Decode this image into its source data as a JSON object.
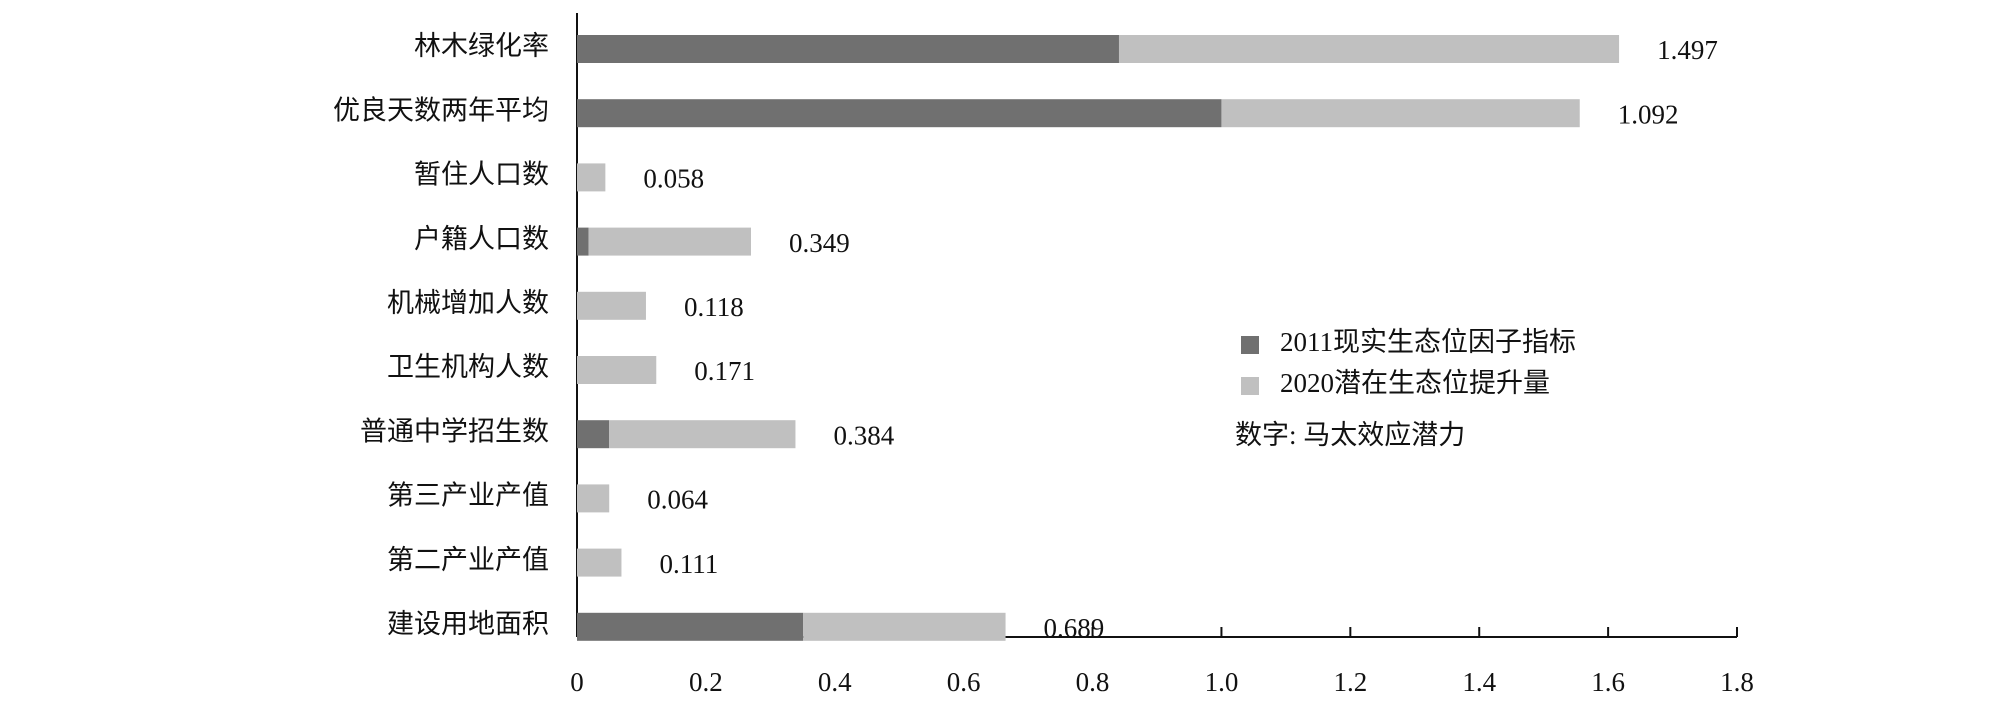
{
  "chart_data": {
    "type": "bar",
    "orientation": "horizontal",
    "stacked": true,
    "categories": [
      "林木绿化率",
      "优良天数两年平均",
      "暂住人口数",
      "户籍人口数",
      "机械增加人数",
      "卫生机构人数",
      "普通中学招生数",
      "第三产业产值",
      "第二产业产值",
      "建设用地面积"
    ],
    "series": [
      {
        "name": "2011现实生态位因子指标",
        "color": "#707070",
        "values": [
          0.841,
          1.0,
          0,
          0.018,
          0,
          0,
          0.05,
          0,
          0,
          0.351
        ]
      },
      {
        "name": "2020潜在生态位提升量",
        "color": "#c0c0c0",
        "values": [
          0.776,
          0.556,
          0.044,
          0.252,
          0.107,
          0.123,
          0.289,
          0.05,
          0.069,
          0.314
        ]
      }
    ],
    "annotation_series": {
      "name": "数字: 马太效应潜力",
      "values": [
        1.497,
        1.092,
        0.058,
        0.349,
        0.118,
        0.171,
        0.384,
        0.064,
        0.111,
        0.689
      ]
    },
    "xlim": [
      0,
      1.8
    ],
    "xticks": [
      0,
      0.2,
      0.4,
      0.6,
      0.8,
      {
        "value": 1,
        "label": "1.0"
      },
      1.2,
      1.4,
      1.6,
      1.8
    ],
    "grid": false
  }
}
